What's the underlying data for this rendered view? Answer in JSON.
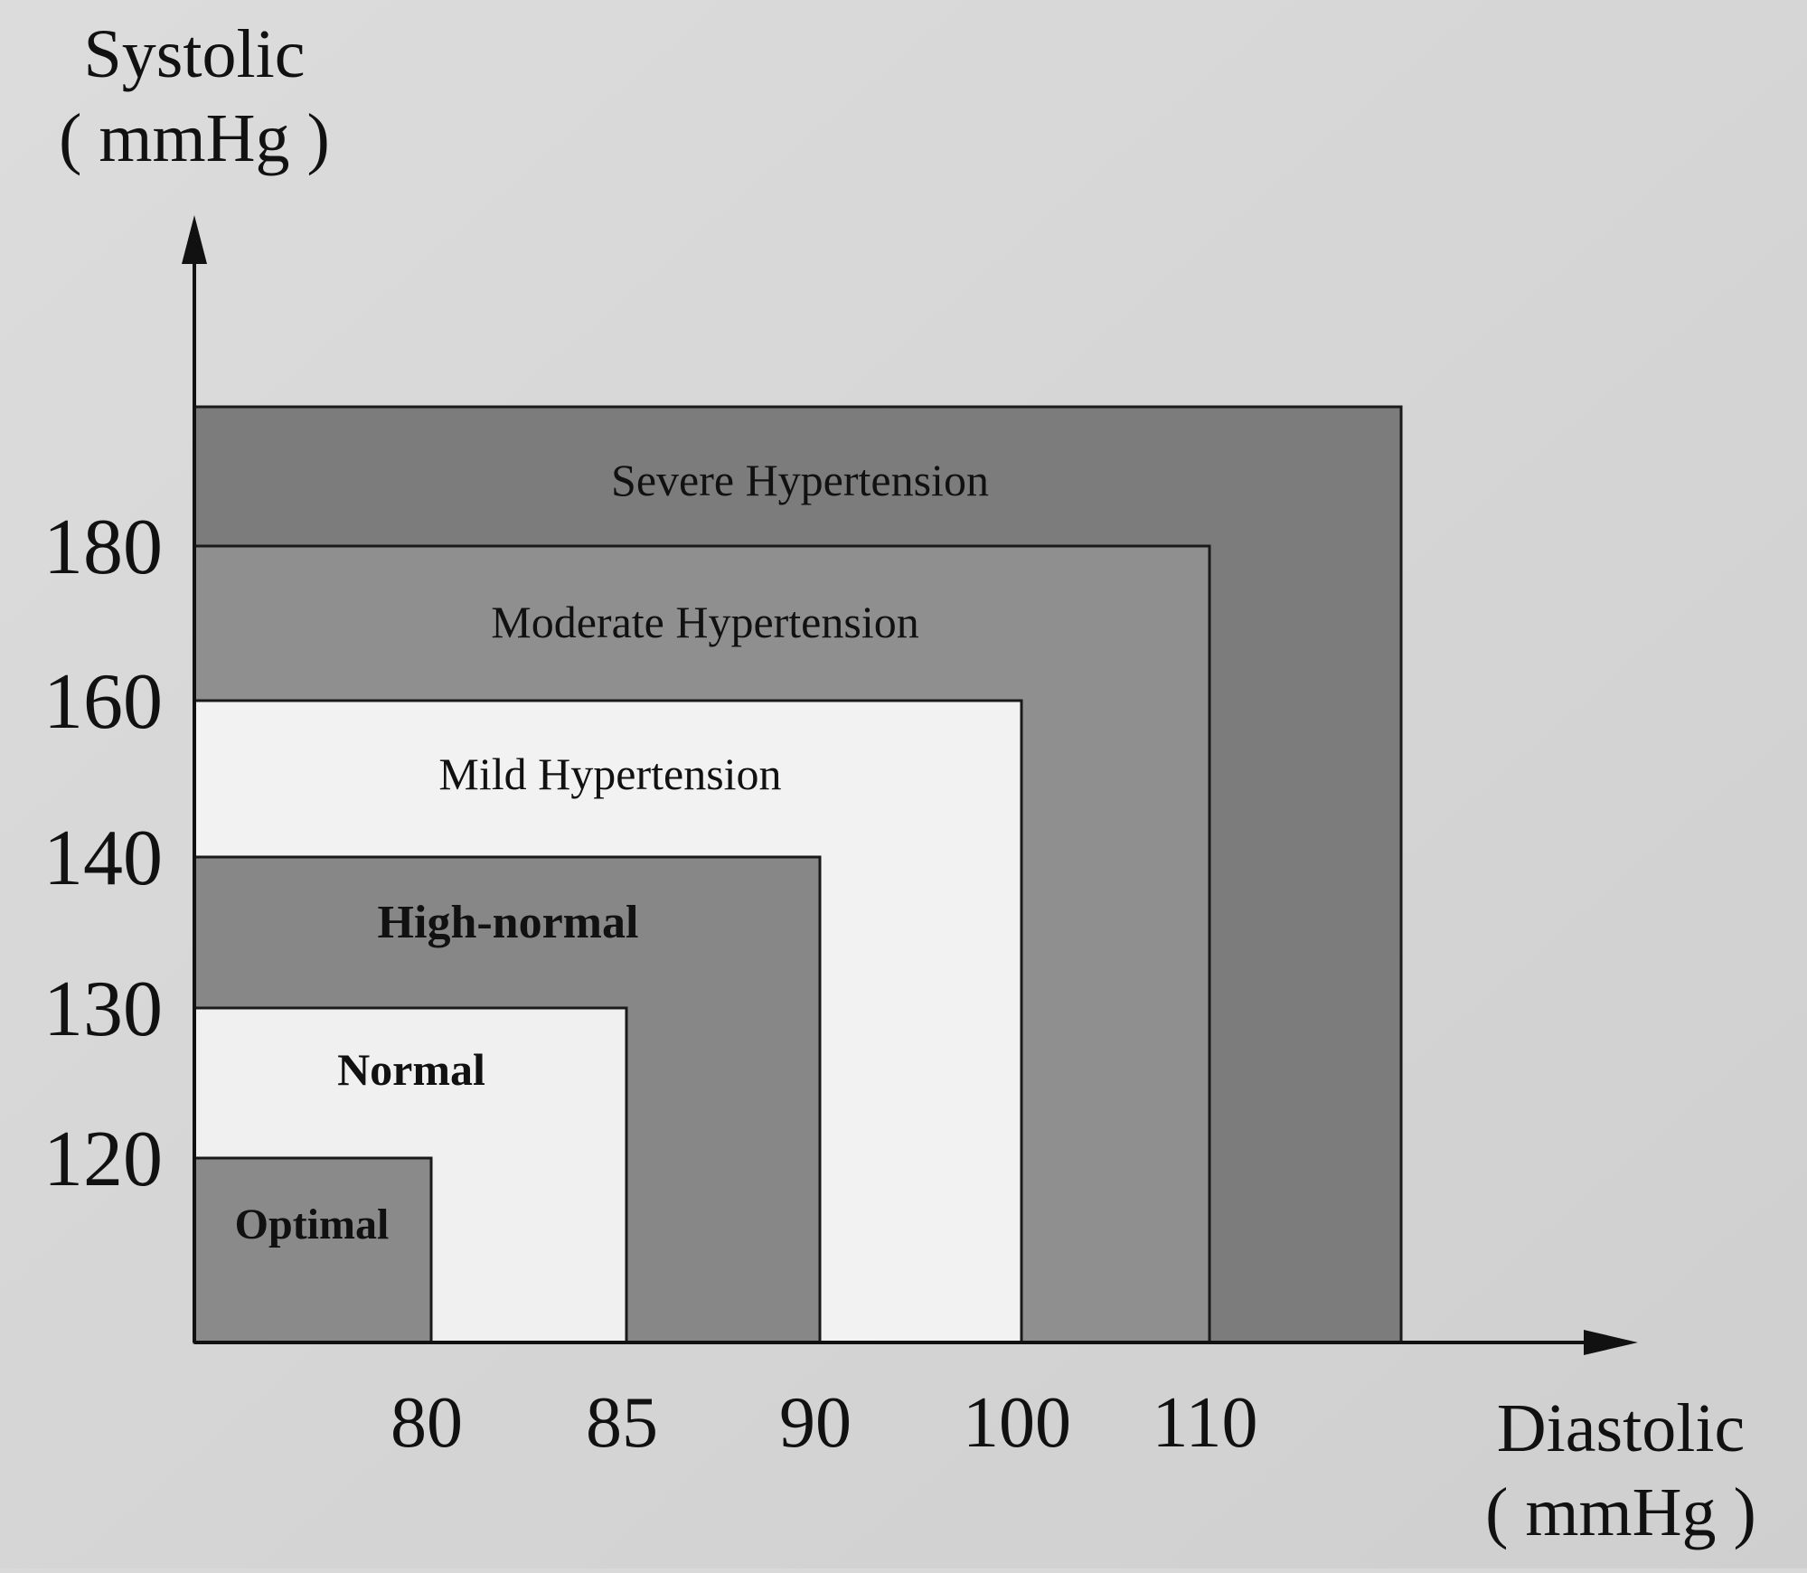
{
  "chart_data": {
    "type": "area",
    "xlabel": "Diastolic",
    "xlabel_unit": "( mmHg )",
    "ylabel": "Systolic",
    "ylabel_unit": "( mmHg )",
    "x_ticks": [
      "80",
      "85",
      "90",
      "100",
      "110"
    ],
    "y_ticks": [
      "120",
      "130",
      "140",
      "160",
      "180"
    ],
    "regions": [
      {
        "name": "Severe Hypertension",
        "diastolic_max": null,
        "systolic_max": null,
        "fill": "#7c7c7c"
      },
      {
        "name": "Moderate Hypertension",
        "diastolic_max": 110,
        "systolic_max": 180,
        "fill": "#8f8f8f"
      },
      {
        "name": "Mild Hypertension",
        "diastolic_max": 100,
        "systolic_max": 160,
        "fill": "#f2f2f2"
      },
      {
        "name": "High-normal",
        "diastolic_max": 90,
        "systolic_max": 140,
        "fill": "#878787"
      },
      {
        "name": "Normal",
        "diastolic_max": 85,
        "systolic_max": 130,
        "fill": "#f0f0f0"
      },
      {
        "name": "Optimal",
        "diastolic_max": 80,
        "systolic_max": 120,
        "fill": "#8a8a8a"
      }
    ]
  }
}
